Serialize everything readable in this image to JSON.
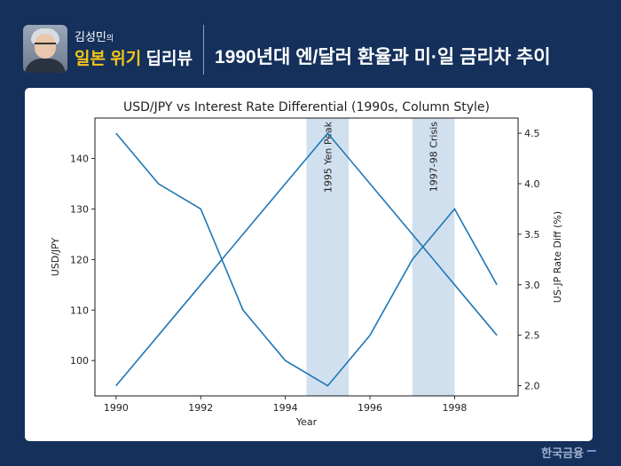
{
  "header": {
    "author_name": "김성민",
    "author_suffix": "의",
    "series_part1": "일본 위기",
    "series_part2": "딥리뷰",
    "title": "1990년대 엔/달러 환율과 미·일 금리차 추이"
  },
  "footer": {
    "brand": "한국금융"
  },
  "colors": {
    "background": "#14305b",
    "series_line": "#1f77b4",
    "shade": "#b8d0e6",
    "accent_yellow": "#f5c518"
  },
  "chart_data": {
    "type": "line",
    "title": "USD/JPY vs Interest Rate Differential (1990s, Column Style)",
    "xlabel": "Year",
    "ylabel_left": "USD/JPY",
    "ylabel_right": "US-JP Rate Diff (%)",
    "x": [
      1990,
      1991,
      1992,
      1993,
      1994,
      1995,
      1996,
      1997,
      1998,
      1999
    ],
    "x_ticks": [
      1990,
      1992,
      1994,
      1996,
      1998
    ],
    "xlim": [
      1989.5,
      1999.5
    ],
    "ylim_left": [
      93,
      148
    ],
    "ylim_right": [
      1.9,
      4.65
    ],
    "y_ticks_left": [
      100,
      110,
      120,
      130,
      140
    ],
    "y_ticks_right": [
      2.0,
      2.5,
      3.0,
      3.5,
      4.0,
      4.5
    ],
    "series": [
      {
        "axis": "left",
        "values": [
          145,
          135,
          130,
          110,
          100,
          95,
          105,
          120,
          130,
          115
        ]
      },
      {
        "axis": "right",
        "values": [
          2.0,
          2.5,
          3.0,
          3.5,
          4.0,
          4.5,
          4.0,
          3.5,
          3.0,
          2.5
        ]
      }
    ],
    "shaded_regions": [
      {
        "start": 1994.5,
        "end": 1995.5,
        "label": "1995 Yen Peak"
      },
      {
        "start": 1997.0,
        "end": 1998.0,
        "label": "1997-98 Crisis"
      }
    ],
    "grid": false
  }
}
